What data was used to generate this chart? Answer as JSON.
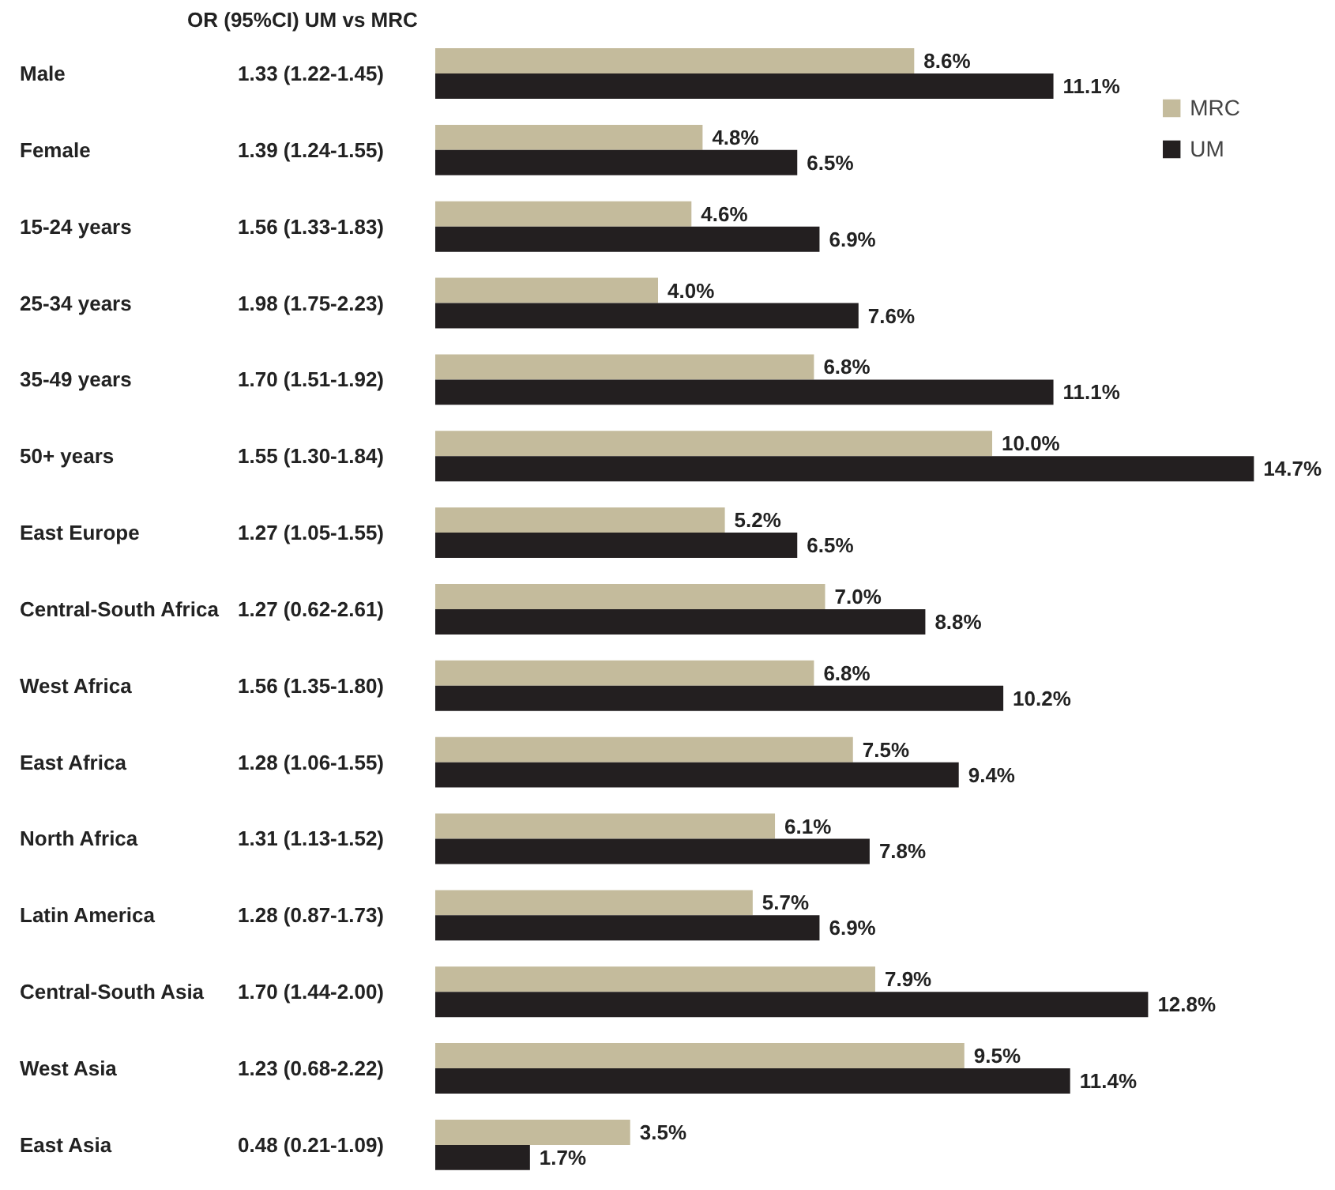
{
  "chart_data": {
    "type": "bar",
    "orientation": "horizontal",
    "data_labels": true,
    "legend": "top right",
    "grid": false,
    "categories": [
      "Male",
      "Female",
      "15-24 years",
      "25-34 years",
      "35-49 years",
      "50+ years",
      "East Europe",
      "Central-South Africa",
      "West Africa",
      "East Africa",
      "North Africa",
      "Latin America",
      "Central-South Asia",
      "West Asia",
      "East Asia"
    ],
    "annotations": [
      "OR (95%CI) UM vs MRC",
      "1.33 (1.22-1.45)",
      "1.39 (1.24-1.55)",
      "1.56 (1.33-1.83)",
      "1.98 (1.75-2.23)",
      "1.70 (1.51-1.92)",
      "1.55 (1.30-1.84)",
      "1.27 (1.05-1.55)",
      "1.27 (0.62-2.61)",
      "1.56 (1.35-1.80)",
      "1.28 (1.06-1.55)",
      "1.31 (1.13-1.52)",
      "1.28 (0.87-1.73)",
      "1.70 (1.44-2.00)",
      "1.23 (0.68-2.22)",
      "0.48 (0.21-1.09)"
    ],
    "series": [
      {
        "name": "MRC",
        "color": "#c4bb9c",
        "values": [
          8.6,
          4.8,
          4.6,
          4.0,
          6.8,
          10.0,
          5.2,
          7.0,
          6.8,
          7.5,
          6.1,
          5.7,
          7.9,
          9.5,
          3.5
        ],
        "value_labels": [
          "8.6%",
          "4.8%",
          "4.6%",
          "4.0%",
          "6.8%",
          "10.0%",
          "5.2%",
          "7.0%",
          "6.8%",
          "7.5%",
          "6.1%",
          "5.7%",
          "7.9%",
          "9.5%",
          "3.5%"
        ]
      },
      {
        "name": "UM",
        "color": "#231f20",
        "values": [
          11.1,
          6.5,
          6.9,
          7.6,
          11.1,
          14.7,
          6.5,
          8.8,
          10.2,
          9.4,
          7.8,
          6.9,
          12.8,
          11.4,
          1.7
        ],
        "value_labels": [
          "11.1%",
          "6.5%",
          "6.9%",
          "7.6%",
          "11.1%",
          "14.7%",
          "6.5%",
          "8.8%",
          "10.2%",
          "9.4%",
          "7.8%",
          "6.9%",
          "12.8%",
          "11.4%",
          "1.7%"
        ]
      }
    ]
  }
}
